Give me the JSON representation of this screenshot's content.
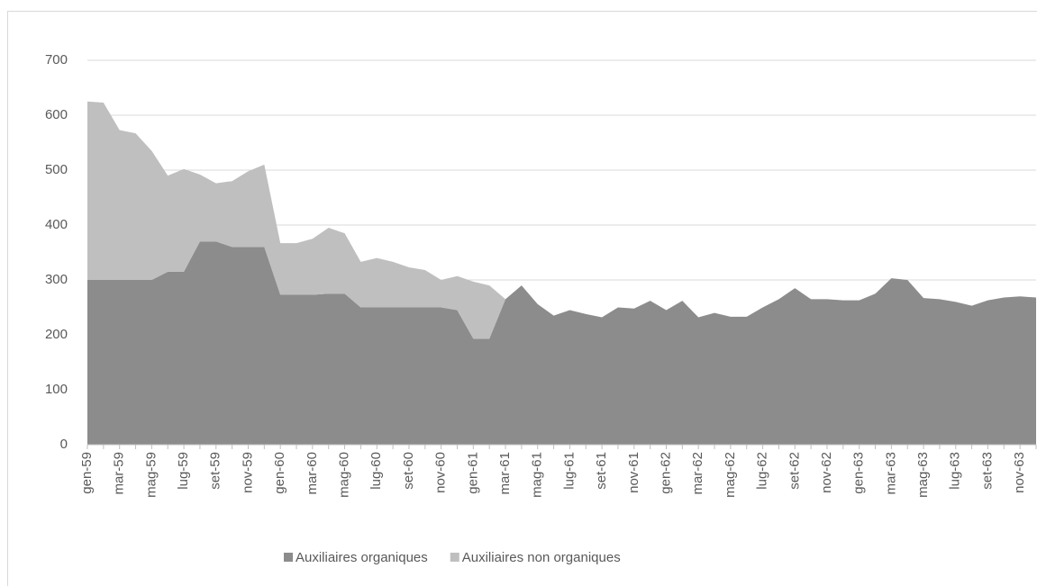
{
  "chart_data": {
    "type": "area",
    "stacked": true,
    "categories": [
      "gen-59",
      null,
      "mar-59",
      null,
      "mag-59",
      null,
      "lug-59",
      null,
      "set-59",
      null,
      "nov-59",
      null,
      "gen-60",
      null,
      "mar-60",
      null,
      "mag-60",
      null,
      "lug-60",
      null,
      "set-60",
      null,
      "nov-60",
      null,
      "gen-61",
      null,
      "mar-61",
      null,
      "mag-61",
      null,
      "lug-61",
      null,
      "set-61",
      null,
      "nov-61",
      null,
      "gen-62",
      null,
      "mar-62",
      null,
      "mag-62",
      null,
      "lug-62",
      null,
      "set-62",
      null,
      "nov-62",
      null,
      "gen-63",
      null,
      "mar-63",
      null,
      "mag-63",
      null,
      "lug-63",
      null,
      "set-63",
      null,
      "nov-63",
      null
    ],
    "series": [
      {
        "name": "Auxiliaires organiques",
        "color": "#8c8c8c",
        "values": [
          300,
          300,
          300,
          300,
          300,
          315,
          315,
          370,
          370,
          360,
          360,
          360,
          273,
          273,
          273,
          275,
          275,
          250,
          250,
          250,
          250,
          250,
          250,
          245,
          193,
          193,
          265,
          290,
          256,
          235,
          245,
          238,
          232,
          250,
          248,
          262,
          245,
          262,
          232,
          240,
          233,
          233,
          250,
          265,
          285,
          265,
          265,
          263,
          263,
          275,
          303,
          300,
          267,
          265,
          260,
          253,
          263,
          268,
          270,
          268
        ]
      },
      {
        "name": "Auxiliaires non organiques",
        "color": "#bfbfbf",
        "values": [
          325,
          323,
          273,
          267,
          235,
          175,
          187,
          122,
          106,
          120,
          138,
          150,
          94,
          94,
          102,
          120,
          110,
          83,
          90,
          83,
          73,
          68,
          50,
          62,
          104,
          97,
          0,
          0,
          0,
          0,
          0,
          0,
          0,
          0,
          0,
          0,
          0,
          0,
          0,
          0,
          0,
          0,
          0,
          0,
          0,
          0,
          0,
          0,
          0,
          0,
          0,
          0,
          0,
          0,
          0,
          0,
          0,
          0,
          0,
          0
        ]
      }
    ],
    "ylim": [
      0,
      700
    ],
    "yticks": [
      0,
      100,
      200,
      300,
      400,
      500,
      600,
      700
    ],
    "grid": true,
    "legend": "bottom"
  }
}
